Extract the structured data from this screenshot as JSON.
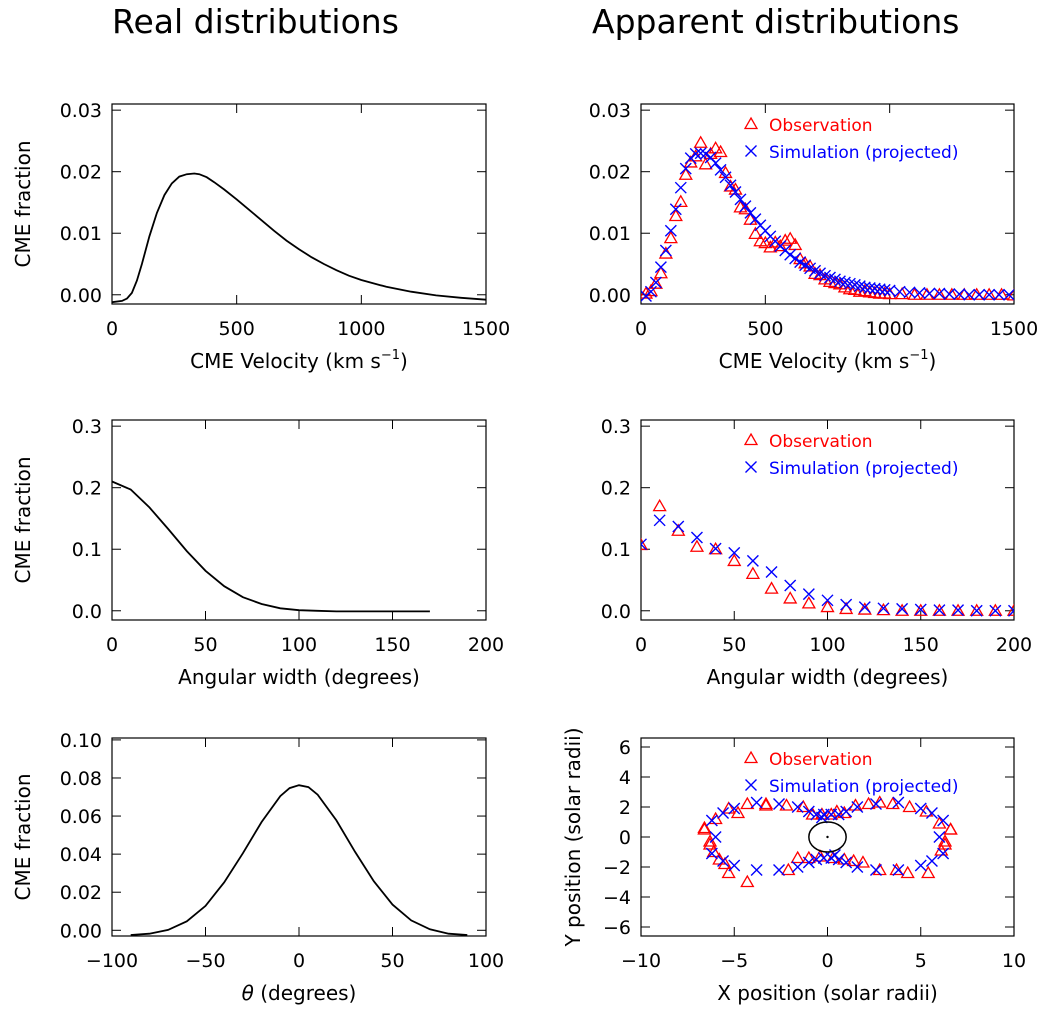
{
  "titles": {
    "left": "Real distributions",
    "right": "Apparent distributions"
  },
  "colors": {
    "line": "#000000",
    "observation": "#ff0000",
    "simulation": "#0000ff"
  },
  "chart_data": [
    {
      "id": "real-velocity",
      "type": "line",
      "title": "",
      "xlabel": "CME Velocity (km s",
      "xlabel_sup": "−1",
      "xlabel_end": ")",
      "ylabel": "CME fraction",
      "xlim": [
        0,
        1500
      ],
      "ylim": [
        -0.0015,
        0.031
      ],
      "xticks": [
        "0",
        "500",
        "1000",
        "1500"
      ],
      "xtick_values": [
        0,
        500,
        1000,
        1500
      ],
      "yticks": [
        "0.00",
        "0.01",
        "0.02",
        "0.03"
      ],
      "ytick_values": [
        0,
        0.01,
        0.02,
        0.03
      ],
      "series": [
        {
          "x": [
            0,
            40,
            60,
            80,
            100,
            120,
            150,
            180,
            210,
            240,
            270,
            300,
            330,
            350,
            380,
            410,
            450,
            500,
            550,
            600,
            650,
            700,
            750,
            800,
            850,
            900,
            950,
            1000,
            1100,
            1200,
            1300,
            1400,
            1500
          ],
          "y": [
            -0.0012,
            -0.001,
            -0.0006,
            0.0003,
            0.0023,
            0.005,
            0.0095,
            0.0133,
            0.0162,
            0.0181,
            0.0192,
            0.0196,
            0.0197,
            0.0196,
            0.0191,
            0.0183,
            0.0171,
            0.0155,
            0.0138,
            0.0121,
            0.0104,
            0.0088,
            0.0074,
            0.0061,
            0.005,
            0.004,
            0.0031,
            0.0024,
            0.0013,
            0.0005,
            -0.0001,
            -0.0005,
            -0.0008
          ]
        }
      ]
    },
    {
      "id": "apparent-velocity",
      "type": "scatter",
      "title": "",
      "xlabel": "CME Velocity (km s",
      "xlabel_sup": "−1",
      "xlabel_end": ")",
      "ylabel": "",
      "xlim": [
        0,
        1500
      ],
      "ylim": [
        -0.0015,
        0.031
      ],
      "xticks": [
        "0",
        "500",
        "1000",
        "1500"
      ],
      "xtick_values": [
        0,
        500,
        1000,
        1500
      ],
      "yticks": [
        "0.00",
        "0.01",
        "0.02",
        "0.03"
      ],
      "ytick_values": [
        0,
        0.01,
        0.02,
        0.03
      ],
      "legend": [
        "Observation",
        "Simulation (projected)"
      ],
      "legend_position": "top-right",
      "series": [
        {
          "name": "Observation",
          "marker": "triangle",
          "x": [
            20,
            40,
            60,
            80,
            100,
            120,
            140,
            160,
            180,
            200,
            220,
            240,
            260,
            280,
            300,
            320,
            340,
            360,
            380,
            400,
            420,
            440,
            460,
            480,
            500,
            520,
            540,
            560,
            580,
            600,
            620,
            640,
            660,
            680,
            700,
            720,
            740,
            760,
            780,
            800,
            820,
            840,
            860,
            880,
            900,
            920,
            940,
            960,
            980,
            1000,
            1050,
            1100,
            1150,
            1200,
            1250,
            1300,
            1350,
            1400,
            1450,
            1500
          ],
          "y": [
            0.0002,
            0.0006,
            0.0018,
            0.0035,
            0.0067,
            0.0092,
            0.0128,
            0.0151,
            0.0195,
            0.0215,
            0.0225,
            0.0247,
            0.0212,
            0.0229,
            0.0238,
            0.0232,
            0.0198,
            0.0176,
            0.0171,
            0.0142,
            0.0139,
            0.0122,
            0.0099,
            0.0087,
            0.0084,
            0.0077,
            0.0085,
            0.0079,
            0.0088,
            0.0091,
            0.0081,
            0.0058,
            0.0051,
            0.0046,
            0.0034,
            0.0032,
            0.0025,
            0.0021,
            0.0019,
            0.0017,
            0.0012,
            0.0009,
            0.0008,
            0.0005,
            0.0006,
            0.0004,
            0.0003,
            0.0002,
            0.0002,
            0.0001,
            0.0001,
            0.0,
            0.0,
            0.0,
            0.0,
            0.0,
            0.0,
            0.0,
            0.0,
            -0.0001
          ]
        },
        {
          "name": "Simulation (projected)",
          "marker": "cross",
          "x": [
            20,
            40,
            60,
            80,
            100,
            120,
            140,
            160,
            180,
            200,
            220,
            240,
            260,
            280,
            300,
            320,
            340,
            360,
            380,
            400,
            420,
            440,
            460,
            480,
            500,
            520,
            540,
            560,
            580,
            600,
            620,
            640,
            660,
            680,
            700,
            720,
            740,
            760,
            780,
            800,
            820,
            840,
            860,
            880,
            900,
            920,
            940,
            960,
            980,
            1000,
            1040,
            1080,
            1120,
            1160,
            1200,
            1240,
            1280,
            1320,
            1360,
            1400,
            1440,
            1480
          ],
          "y": [
            -0.0002,
            0.0005,
            0.002,
            0.0045,
            0.0072,
            0.0104,
            0.0139,
            0.0174,
            0.0205,
            0.0222,
            0.0229,
            0.023,
            0.0229,
            0.0223,
            0.0214,
            0.0203,
            0.0191,
            0.0178,
            0.0167,
            0.0155,
            0.0144,
            0.0133,
            0.0123,
            0.0113,
            0.0104,
            0.0095,
            0.0087,
            0.0079,
            0.0072,
            0.0065,
            0.0059,
            0.0053,
            0.0048,
            0.0043,
            0.0039,
            0.0035,
            0.0031,
            0.0028,
            0.0025,
            0.0022,
            0.002,
            0.0018,
            0.0016,
            0.0014,
            0.0012,
            0.0011,
            0.001,
            0.0009,
            0.0008,
            0.0007,
            0.0005,
            0.0004,
            0.0003,
            0.0002,
            0.0002,
            0.0001,
            0.0001,
            0.0,
            0.0,
            0.0,
            0.0,
            0.0
          ]
        }
      ]
    },
    {
      "id": "real-width",
      "type": "line",
      "title": "",
      "xlabel": "Angular width (degrees)",
      "ylabel": "CME fraction",
      "xlim": [
        0,
        200
      ],
      "ylim": [
        -0.015,
        0.31
      ],
      "xticks": [
        "0",
        "50",
        "100",
        "150",
        "200"
      ],
      "xtick_values": [
        0,
        50,
        100,
        150,
        200
      ],
      "yticks": [
        "0.0",
        "0.1",
        "0.2",
        "0.3"
      ],
      "ytick_values": [
        0,
        0.1,
        0.2,
        0.3
      ],
      "series": [
        {
          "x": [
            0,
            10,
            20,
            30,
            40,
            50,
            60,
            70,
            80,
            90,
            100,
            110,
            120,
            130,
            140,
            150,
            160,
            170
          ],
          "y": [
            0.21,
            0.197,
            0.168,
            0.133,
            0.097,
            0.065,
            0.04,
            0.022,
            0.011,
            0.004,
            0.001,
            0.0,
            -0.001,
            -0.001,
            -0.001,
            -0.001,
            -0.001,
            -0.001
          ]
        }
      ]
    },
    {
      "id": "apparent-width",
      "type": "scatter",
      "title": "",
      "xlabel": "Angular width (degrees)",
      "ylabel": "",
      "xlim": [
        0,
        200
      ],
      "ylim": [
        -0.015,
        0.31
      ],
      "xticks": [
        "0",
        "50",
        "100",
        "150",
        "200"
      ],
      "xtick_values": [
        0,
        50,
        100,
        150,
        200
      ],
      "yticks": [
        "0.0",
        "0.1",
        "0.2",
        "0.3"
      ],
      "ytick_values": [
        0,
        0.1,
        0.2,
        0.3
      ],
      "legend": [
        "Observation",
        "Simulation (projected)"
      ],
      "legend_position": "top-right",
      "series": [
        {
          "name": "Observation",
          "marker": "triangle",
          "x": [
            0,
            10,
            20,
            30,
            40,
            50,
            60,
            70,
            80,
            90,
            100,
            110,
            120,
            130,
            140,
            150,
            160,
            170,
            180,
            190,
            200
          ],
          "y": [
            0.107,
            0.17,
            0.13,
            0.104,
            0.1,
            0.081,
            0.06,
            0.036,
            0.02,
            0.012,
            0.006,
            0.003,
            0.002,
            0.001,
            0.0,
            0.0,
            0.0,
            0.0,
            0.0,
            0.0,
            0.0
          ]
        },
        {
          "name": "Simulation (projected)",
          "marker": "cross",
          "x": [
            0,
            10,
            20,
            30,
            40,
            50,
            60,
            70,
            80,
            90,
            100,
            110,
            120,
            130,
            140,
            150,
            160,
            170,
            180,
            190,
            200
          ],
          "y": [
            0.108,
            0.147,
            0.137,
            0.119,
            0.101,
            0.094,
            0.081,
            0.063,
            0.041,
            0.027,
            0.017,
            0.01,
            0.006,
            0.004,
            0.003,
            0.002,
            0.001,
            0.001,
            0.0,
            0.0,
            0.0
          ]
        }
      ]
    },
    {
      "id": "real-theta",
      "type": "line",
      "title": "",
      "xlabel_symbol": "θ",
      "xlabel": " (degrees)",
      "ylabel": "CME fraction",
      "xlim": [
        -100,
        100
      ],
      "ylim": [
        -0.003,
        0.101
      ],
      "xticks": [
        "−100",
        "−50",
        "0",
        "50",
        "100"
      ],
      "xtick_values": [
        -100,
        -50,
        0,
        50,
        100
      ],
      "yticks": [
        "0.00",
        "0.02",
        "0.04",
        "0.06",
        "0.08",
        "0.10"
      ],
      "ytick_values": [
        0,
        0.02,
        0.04,
        0.06,
        0.08,
        0.1
      ],
      "series": [
        {
          "x": [
            -90,
            -80,
            -70,
            -60,
            -50,
            -40,
            -30,
            -20,
            -10,
            -5,
            0,
            5,
            10,
            20,
            30,
            40,
            50,
            60,
            70,
            80,
            90
          ],
          "y": [
            -0.0025,
            -0.0018,
            0.0002,
            0.0047,
            0.0128,
            0.0252,
            0.0405,
            0.0569,
            0.0705,
            0.0747,
            0.0762,
            0.0752,
            0.0712,
            0.0577,
            0.0412,
            0.0258,
            0.0135,
            0.0052,
            0.0005,
            -0.0018,
            -0.0025
          ]
        }
      ]
    },
    {
      "id": "apparent-position",
      "type": "scatter",
      "title": "",
      "xlabel": "X position (solar radii)",
      "ylabel": "Y position (solar radii)",
      "xlim": [
        -10,
        10
      ],
      "ylim": [
        -6.6,
        6.6
      ],
      "xticks": [
        "−10",
        "−5",
        "0",
        "5",
        "10"
      ],
      "xtick_values": [
        -10,
        -5,
        0,
        5,
        10
      ],
      "yticks": [
        "−6",
        "−4",
        "−2",
        "0",
        "2",
        "4",
        "6"
      ],
      "ytick_values": [
        -6,
        -4,
        -2,
        0,
        2,
        4,
        6
      ],
      "legend": [
        "Observation",
        "Simulation (projected)"
      ],
      "legend_position": "top-right",
      "series": [
        {
          "name": "Observation",
          "marker": "triangle",
          "x": [
            -6.6,
            -6.3,
            -6.1,
            -5.8,
            -5.3,
            -4.8,
            -4.3,
            -3.3,
            -2.2,
            -1.3,
            -0.8,
            -0.3,
            0.2,
            0.5,
            0.9,
            1.5,
            2.2,
            2.8,
            3.5,
            4.4,
            5.3,
            6.0,
            6.3,
            6.6,
            -6.6,
            -6.3,
            -6.0,
            -5.5,
            -5.3,
            -4.3,
            -3.3,
            -2.1,
            -1.6,
            -1.0,
            -0.4,
            0.3,
            0.9,
            1.4,
            1.9,
            2.8,
            3.7,
            4.3,
            5.4,
            6.1,
            6.3,
            6.6
          ],
          "y": [
            0.5,
            -0.5,
            -1.0,
            -1.5,
            -2.4,
            1.6,
            -3.0,
            2.2,
            2.1,
            2.0,
            1.5,
            1.5,
            1.5,
            1.7,
            1.6,
            2.1,
            2.2,
            2.3,
            2.2,
            2.0,
            1.7,
            0.9,
            -0.3,
            0.5,
            0.6,
            -0.3,
            1.2,
            -1.8,
            1.9,
            2.2,
            2.1,
            -2.2,
            -1.4,
            -1.4,
            -1.3,
            -1.4,
            -1.5,
            -1.6,
            -1.7,
            -2.2,
            -2.2,
            -2.4,
            -2.4,
            -0.9,
            -0.5,
            0.5
          ]
        },
        {
          "name": "Simulation (projected)",
          "marker": "cross",
          "x": [
            -6.2,
            -5.6,
            -5.0,
            -3.8,
            -2.6,
            -1.6,
            -1.0,
            -0.6,
            -0.2,
            0.2,
            0.6,
            1.0,
            1.6,
            2.6,
            3.8,
            5.0,
            5.6,
            6.2,
            -6.2,
            -5.6,
            -5.0,
            -3.8,
            -2.6,
            -1.6,
            -1.0,
            -0.6,
            -0.2,
            0.2,
            0.6,
            1.0,
            1.6,
            2.6,
            3.8,
            5.0,
            5.6,
            6.2,
            -6.0,
            6.0,
            -0.3,
            0.4
          ],
          "y": [
            1.1,
            1.6,
            1.9,
            2.3,
            2.2,
            2.0,
            1.7,
            1.5,
            1.5,
            1.5,
            1.5,
            1.7,
            2.0,
            2.2,
            2.3,
            1.9,
            1.6,
            1.1,
            -1.1,
            -1.6,
            -1.9,
            -2.2,
            -2.2,
            -2.0,
            -1.7,
            -1.5,
            -1.4,
            -1.4,
            -1.5,
            -1.7,
            -2.0,
            -2.2,
            -2.2,
            -1.9,
            -1.6,
            -1.1,
            0.0,
            0.0,
            1.3,
            -1.2
          ]
        }
      ]
    }
  ]
}
